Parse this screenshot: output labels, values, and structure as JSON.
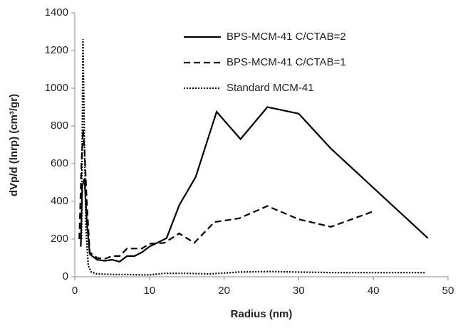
{
  "chart_data": {
    "type": "line",
    "xlabel": "Radius (nm)",
    "ylabel": "dVp/d (lnrp) (cm³/gr)",
    "xlim": [
      0,
      50
    ],
    "xticks": [
      0,
      10,
      20,
      30,
      40,
      50
    ],
    "ylim": [
      0,
      1400
    ],
    "yticks": [
      0,
      200,
      400,
      600,
      800,
      1000,
      1200,
      1400
    ],
    "grid": false,
    "legend": "upper right",
    "series": [
      {
        "name": "BPS-MCM-41 C/CTAB=2",
        "color": "#000000",
        "dash": "solid",
        "x": [
          0.8,
          1.0,
          1.3,
          1.6,
          2.0,
          3,
          4,
          5,
          6,
          7,
          8,
          9,
          10,
          12.3,
          14,
          16.2,
          19,
          22.2,
          25.8,
          30,
          34.3,
          47.3
        ],
        "y": [
          160,
          480,
          520,
          300,
          120,
          90,
          85,
          90,
          80,
          110,
          110,
          130,
          160,
          205,
          380,
          530,
          875,
          730,
          900,
          865,
          680,
          205
        ]
      },
      {
        "name": "BPS-MCM-41 C/CTAB=1",
        "color": "#000000",
        "dash": "dashed",
        "x": [
          0.6,
          0.9,
          1.1,
          1.3,
          1.6,
          2,
          3,
          4,
          5,
          6,
          7,
          8,
          9,
          10,
          12,
          14,
          16,
          18.7,
          22,
          25.8,
          30,
          34.3,
          40.2
        ],
        "y": [
          200,
          600,
          780,
          680,
          400,
          130,
          100,
          95,
          110,
          110,
          150,
          150,
          150,
          175,
          180,
          230,
          180,
          290,
          310,
          375,
          305,
          265,
          350
        ]
      },
      {
        "name": "Standard MCM-41",
        "color": "#000000",
        "dash": "dotted",
        "x": [
          0.9,
          1.1,
          1.3,
          1.5,
          1.8,
          2.2,
          3,
          5,
          7,
          9,
          10,
          12,
          15,
          18,
          22,
          26,
          30,
          35,
          40,
          47
        ],
        "y": [
          200,
          1260,
          700,
          250,
          60,
          25,
          15,
          12,
          12,
          10,
          10,
          18,
          18,
          15,
          25,
          28,
          25,
          22,
          22,
          22
        ]
      }
    ]
  }
}
